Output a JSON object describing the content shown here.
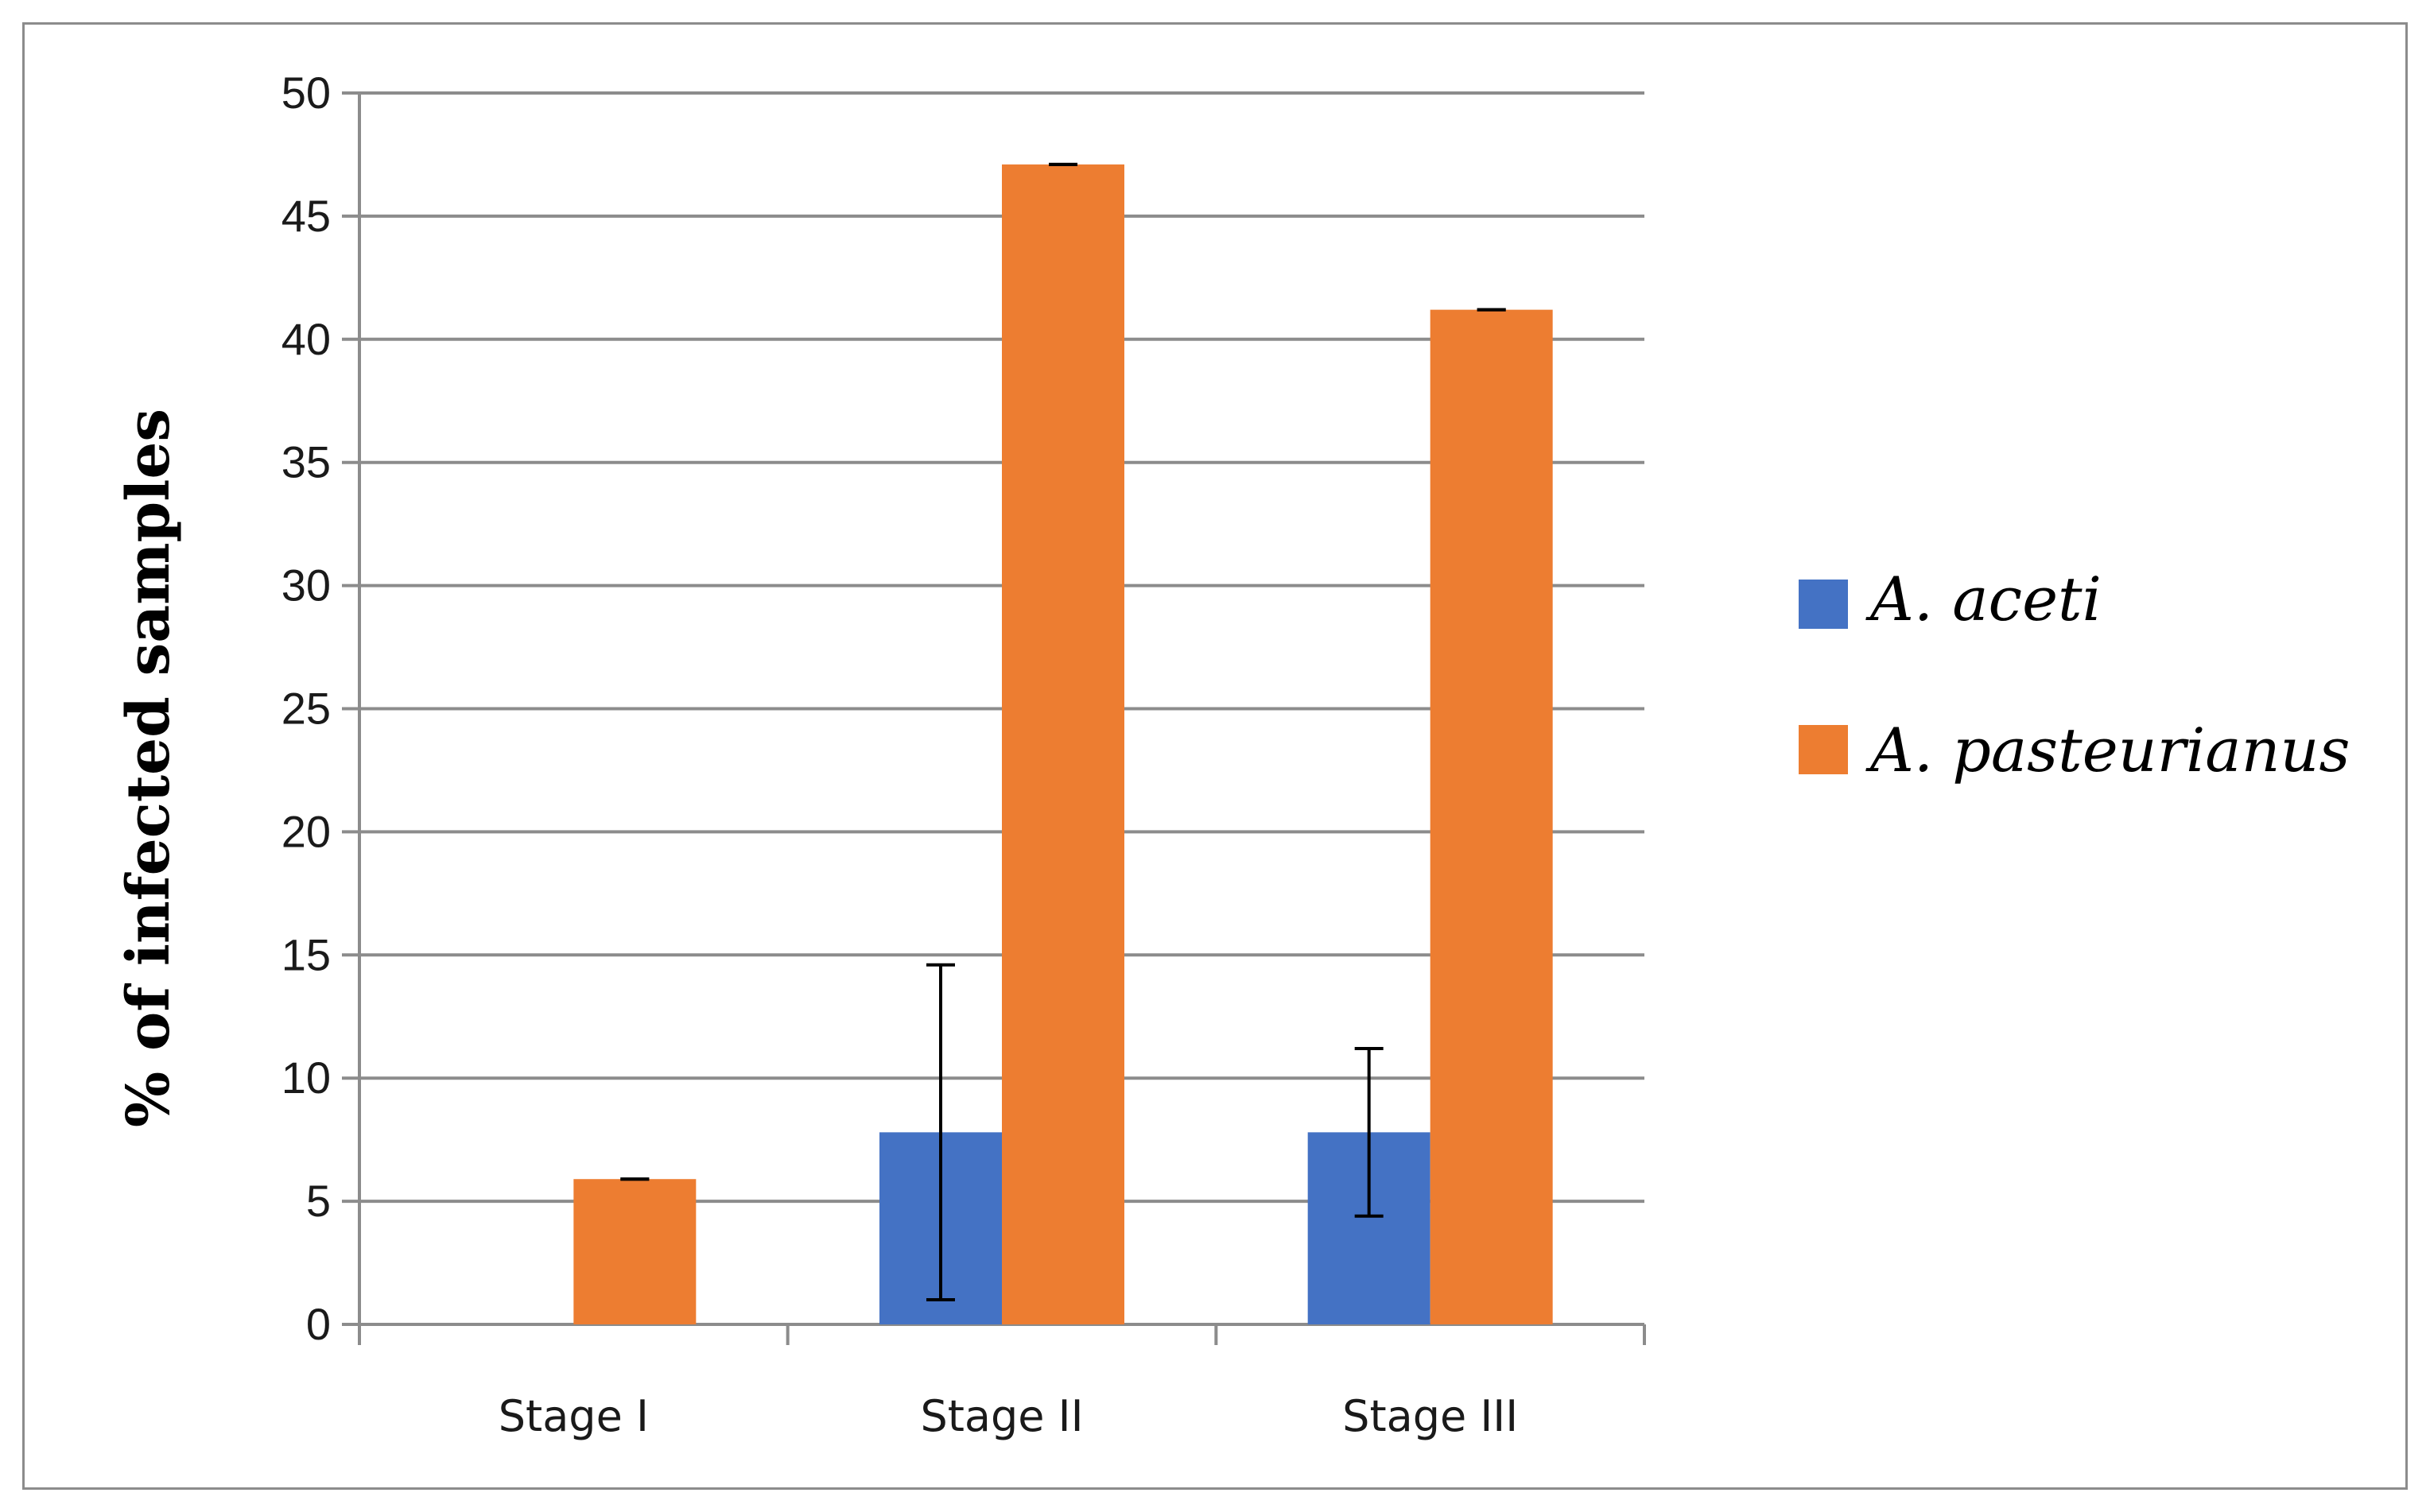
{
  "chart_data": {
    "type": "bar",
    "title": "",
    "xlabel": "",
    "ylabel": "% of infected samples",
    "ylim": [
      0,
      50
    ],
    "yticks": [
      0,
      5,
      10,
      15,
      20,
      25,
      30,
      35,
      40,
      45,
      50
    ],
    "grid": "horizontal",
    "legend_position": "right",
    "categories": [
      "Stage I",
      "Stage II",
      "Stage III"
    ],
    "series": [
      {
        "name": "A. aceti",
        "color": "#4472c4",
        "values": [
          0,
          7.8,
          7.8
        ],
        "error_low": [
          null,
          1.0,
          4.4
        ],
        "error_high": [
          null,
          14.6,
          11.2
        ]
      },
      {
        "name": "A. pasteurianus",
        "color": "#ed7d31",
        "values": [
          5.9,
          47.1,
          41.2
        ],
        "error_low": [
          5.9,
          47.1,
          41.2
        ],
        "error_high": [
          5.9,
          47.1,
          41.2
        ]
      }
    ]
  }
}
